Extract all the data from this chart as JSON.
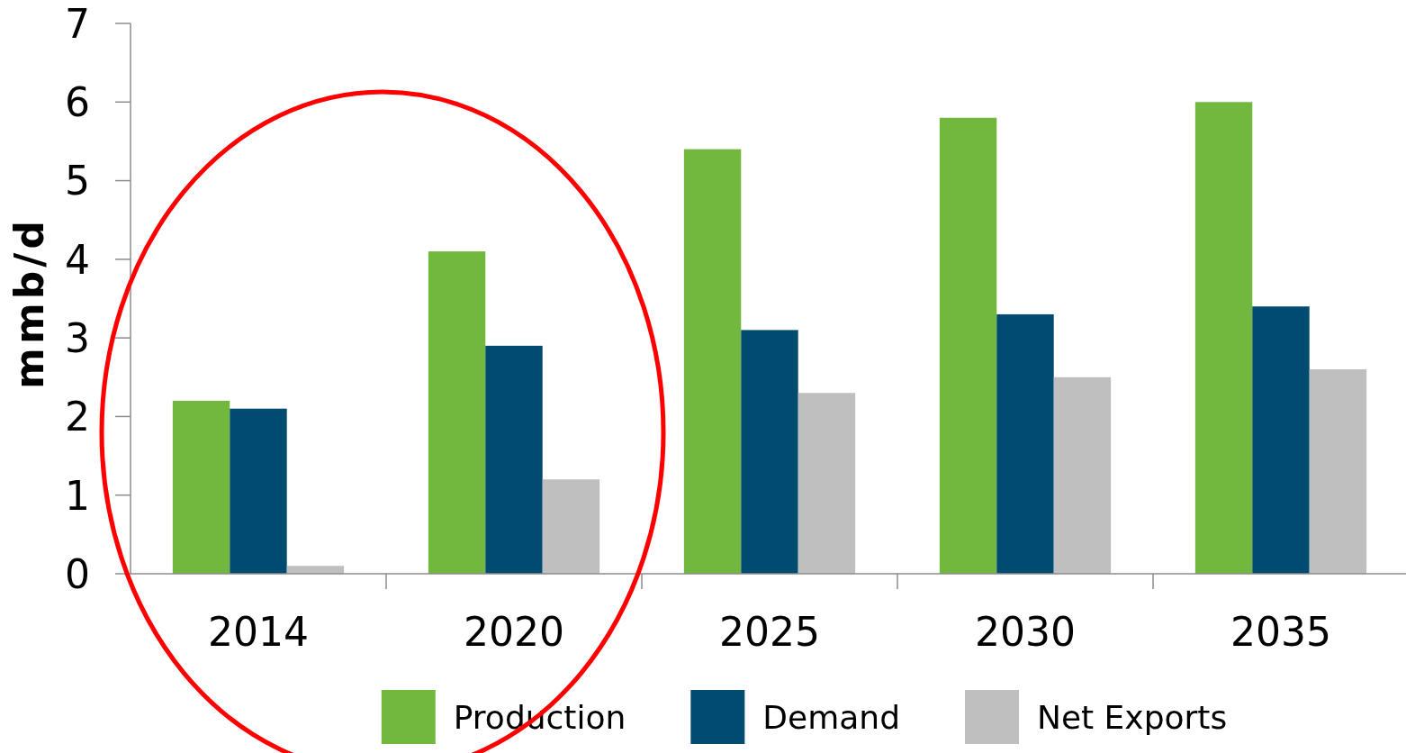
{
  "chart_data": {
    "type": "bar",
    "categories": [
      "2014",
      "2020",
      "2025",
      "2030",
      "2035"
    ],
    "ylabel": "mmb/d",
    "ylim": [
      0,
      7
    ],
    "yticks": [
      0,
      1,
      2,
      3,
      4,
      5,
      6,
      7
    ],
    "legend": "bottom",
    "series": [
      {
        "name": "Production",
        "color": "#72b83e",
        "values": [
          2.2,
          4.1,
          5.4,
          5.8,
          6.0
        ]
      },
      {
        "name": "Demand",
        "color": "#004c70",
        "values": [
          2.1,
          2.9,
          3.1,
          3.3,
          3.4
        ]
      },
      {
        "name": "Net Exports",
        "color": "#bfbfbf",
        "values": [
          0.1,
          1.2,
          2.3,
          2.5,
          2.6
        ]
      }
    ]
  }
}
